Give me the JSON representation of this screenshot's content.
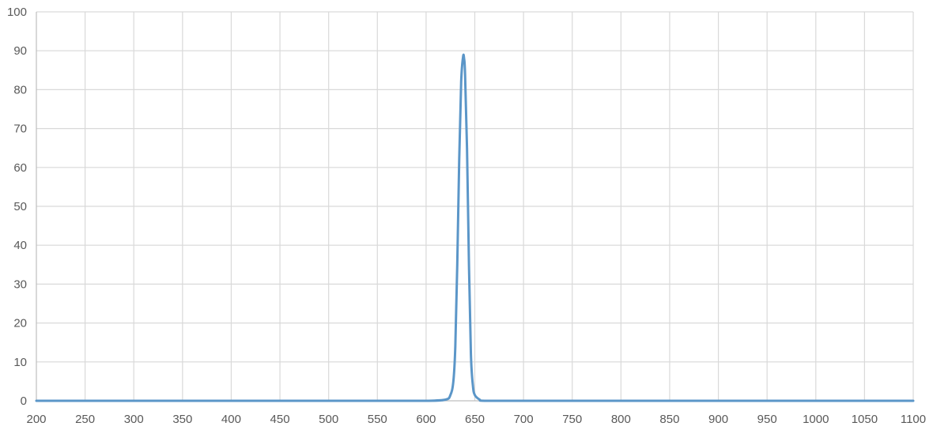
{
  "chart_data": {
    "type": "line",
    "title": "",
    "xlabel": "",
    "ylabel": "",
    "xlim": [
      200,
      1100
    ],
    "ylim": [
      0,
      100
    ],
    "x_ticks": [
      200,
      250,
      300,
      350,
      400,
      450,
      500,
      550,
      600,
      650,
      700,
      750,
      800,
      850,
      900,
      950,
      1000,
      1050,
      1100
    ],
    "y_ticks": [
      0,
      10,
      20,
      30,
      40,
      50,
      60,
      70,
      80,
      90,
      100
    ],
    "grid": true,
    "legend": "none",
    "colors": {
      "series": "#5b96c8",
      "grid": "#d9d9d9",
      "axis": "#bfbfbf",
      "tick_label": "#595959"
    },
    "series": [
      {
        "x": [
          200,
          300,
          400,
          500,
          550,
          600,
          620,
          625,
          628,
          630,
          632,
          634,
          636,
          638,
          639,
          640,
          642,
          644,
          646,
          648,
          650,
          655,
          660,
          700,
          800,
          900,
          1000,
          1100
        ],
        "y": [
          0,
          0,
          0,
          0,
          0,
          0,
          0.3,
          1.5,
          5,
          14,
          35,
          62,
          82,
          88.5,
          88,
          84,
          65,
          35,
          12,
          4,
          1.5,
          0.3,
          0,
          0,
          0,
          0,
          0,
          0
        ]
      }
    ]
  }
}
